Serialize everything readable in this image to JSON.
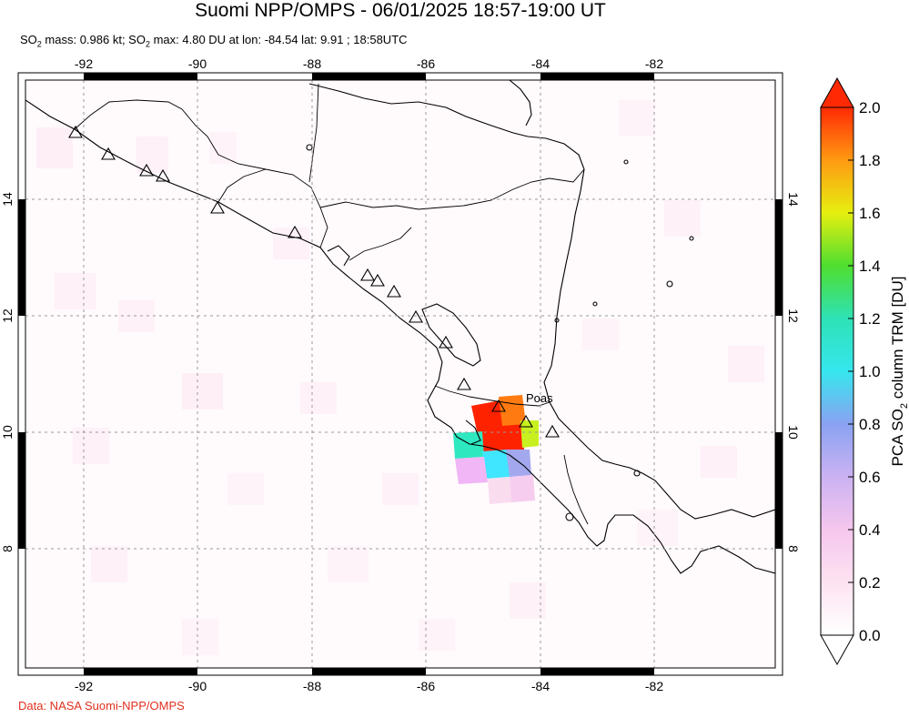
{
  "title": "Suomi NPP/OMPS - 06/01/2025 18:57-19:00 UT",
  "subtitle": {
    "mass_label_a": "SO",
    "mass_label_b": " mass: 0.986 kt; SO",
    "max_label": " max: 4.80 DU at lon: -84.54 lat: 9.91 ; 18:58UTC"
  },
  "credit": "Data: NASA Suomi-NPP/OMPS",
  "map": {
    "lon_range": [
      -93.0,
      -80.0
    ],
    "lat_range": [
      6.0,
      16.0
    ],
    "lon_ticks": [
      "-92",
      "-90",
      "-88",
      "-86",
      "-84",
      "-82"
    ],
    "lat_ticks": [
      "14",
      "12",
      "10",
      "8"
    ],
    "volcano_label": "Poas"
  },
  "colorbar": {
    "ticks": [
      "2.0",
      "1.8",
      "1.6",
      "1.4",
      "1.2",
      "1.0",
      "0.8",
      "0.6",
      "0.4",
      "0.2",
      "0.0"
    ],
    "label_a": "PCA SO",
    "label_b": " column TRM [DU]"
  },
  "colors": {
    "credit": "#e0301e",
    "high": "#ff2200",
    "low": "#ffffff"
  }
}
